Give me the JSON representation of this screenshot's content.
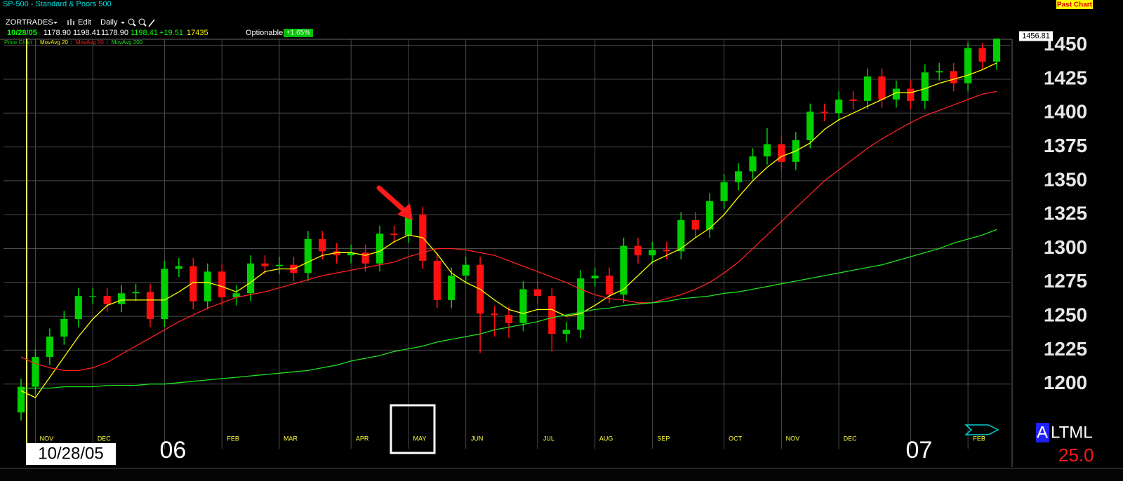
{
  "header": {
    "symbol_title": "SP-500 - Standard & Poors 500",
    "past_chart": "Past Chart",
    "account": "ZORTRADES",
    "edit": "Edit",
    "interval": "Daily",
    "quote": {
      "date": "10/28/05",
      "open": "1178.90",
      "high": "1198.41",
      "low": "1178.90",
      "close": "1198.41",
      "change": "+19.51",
      "volume": "17435"
    },
    "optionable": "Optionable",
    "pct_change": "+1.65%"
  },
  "chart_data": {
    "type": "candlestick",
    "categories": [
      null,
      "NOV",
      null,
      null,
      null,
      "DEC",
      null,
      null,
      null,
      null,
      "06",
      null,
      null,
      null,
      "FEB",
      null,
      null,
      null,
      "MAR",
      null,
      null,
      null,
      null,
      "APR",
      null,
      null,
      null,
      "MAY",
      null,
      null,
      null,
      "JUN",
      null,
      null,
      null,
      null,
      "JUL",
      null,
      null,
      null,
      "AUG",
      null,
      null,
      null,
      "SEP",
      null,
      null,
      null,
      null,
      "OCT",
      null,
      null,
      null,
      "NOV",
      null,
      null,
      null,
      "DEC",
      null,
      null,
      null,
      null,
      "07",
      null,
      null,
      null,
      "FEB",
      null,
      null
    ],
    "price": {
      "name": "Price Chart",
      "color": "#00d000",
      "down_color": "#ff1010",
      "open": [
        1179,
        1198,
        1220,
        1235,
        1248,
        1265,
        1265,
        1259,
        1267,
        1268,
        1248,
        1285,
        1287,
        1261,
        1283,
        1264,
        1267,
        1289,
        1287,
        1288,
        1282,
        1307,
        1298,
        1295,
        1297,
        1289,
        1311,
        1310,
        1325,
        1291,
        1262,
        1280,
        1288,
        1252,
        1251,
        1245,
        1270,
        1265,
        1237,
        1240,
        1278,
        1280,
        1266,
        1302,
        1295,
        1299,
        1298,
        1321,
        1314,
        1335,
        1349,
        1357,
        1368,
        1377,
        1364,
        1380,
        1401,
        1400,
        1410,
        1409,
        1427,
        1410,
        1418,
        1409,
        1430,
        1431,
        1422,
        1448,
        1438
      ],
      "high": [
        1204,
        1226,
        1241,
        1254,
        1271,
        1271,
        1271,
        1273,
        1274,
        1274,
        1291,
        1293,
        1293,
        1289,
        1289,
        1273,
        1295,
        1295,
        1294,
        1294,
        1313,
        1313,
        1304,
        1303,
        1303,
        1317,
        1317,
        1331,
        1331,
        1297,
        1286,
        1294,
        1294,
        1258,
        1257,
        1276,
        1276,
        1271,
        1246,
        1284,
        1286,
        1286,
        1308,
        1308,
        1305,
        1305,
        1327,
        1327,
        1341,
        1355,
        1363,
        1374,
        1389,
        1383,
        1386,
        1407,
        1407,
        1416,
        1416,
        1433,
        1433,
        1424,
        1424,
        1436,
        1437,
        1437,
        1452,
        1452,
        1454
      ],
      "low": [
        1173,
        1192,
        1214,
        1229,
        1242,
        1259,
        1253,
        1253,
        1261,
        1242,
        1242,
        1279,
        1255,
        1255,
        1258,
        1258,
        1261,
        1281,
        1281,
        1276,
        1276,
        1292,
        1289,
        1289,
        1283,
        1283,
        1304,
        1304,
        1285,
        1256,
        1256,
        1274,
        1223,
        1235,
        1234,
        1239,
        1259,
        1224,
        1231,
        1234,
        1272,
        1260,
        1260,
        1289,
        1289,
        1292,
        1292,
        1308,
        1308,
        1329,
        1343,
        1351,
        1362,
        1358,
        1358,
        1374,
        1394,
        1394,
        1403,
        1403,
        1404,
        1404,
        1403,
        1403,
        1424,
        1416,
        1416,
        1432,
        1432
      ],
      "close": [
        1198,
        1220,
        1235,
        1248,
        1265,
        1265,
        1259,
        1267,
        1268,
        1248,
        1285,
        1287,
        1261,
        1283,
        1264,
        1267,
        1289,
        1287,
        1288,
        1282,
        1307,
        1298,
        1295,
        1297,
        1289,
        1311,
        1310,
        1325,
        1291,
        1262,
        1280,
        1288,
        1252,
        1251,
        1245,
        1270,
        1265,
        1237,
        1240,
        1278,
        1280,
        1266,
        1302,
        1295,
        1299,
        1298,
        1321,
        1314,
        1335,
        1349,
        1357,
        1368,
        1377,
        1364,
        1380,
        1401,
        1400,
        1410,
        1409,
        1427,
        1410,
        1418,
        1409,
        1430,
        1431,
        1422,
        1448,
        1438,
        1455
      ]
    },
    "series": [
      {
        "name": "MovAvg 20",
        "color": "#ffff00",
        "values": [
          1195,
          1190,
          1205,
          1220,
          1235,
          1248,
          1258,
          1262,
          1262,
          1262,
          1262,
          1268,
          1275,
          1275,
          1272,
          1268,
          1275,
          1283,
          1285,
          1285,
          1290,
          1295,
          1297,
          1297,
          1295,
          1298,
          1305,
          1310,
          1308,
          1296,
          1282,
          1275,
          1270,
          1262,
          1255,
          1252,
          1255,
          1255,
          1250,
          1252,
          1258,
          1265,
          1270,
          1280,
          1290,
          1295,
          1300,
          1308,
          1315,
          1325,
          1338,
          1350,
          1360,
          1368,
          1372,
          1378,
          1388,
          1395,
          1400,
          1405,
          1410,
          1415,
          1415,
          1418,
          1422,
          1425,
          1428,
          1432,
          1437
        ]
      },
      {
        "name": "MovAvg 50",
        "color": "#ff2020",
        "values": [
          1220,
          1215,
          1212,
          1210,
          1210,
          1212,
          1216,
          1222,
          1228,
          1234,
          1240,
          1246,
          1251,
          1256,
          1260,
          1264,
          1266,
          1268,
          1271,
          1274,
          1277,
          1280,
          1282,
          1284,
          1286,
          1288,
          1290,
          1294,
          1297,
          1300,
          1300,
          1299,
          1297,
          1295,
          1291,
          1287,
          1283,
          1279,
          1275,
          1270,
          1266,
          1263,
          1262,
          1260,
          1260,
          1263,
          1266,
          1270,
          1275,
          1282,
          1290,
          1300,
          1310,
          1320,
          1330,
          1340,
          1350,
          1358,
          1366,
          1374,
          1381,
          1387,
          1393,
          1398,
          1402,
          1406,
          1410,
          1414,
          1416
        ]
      },
      {
        "name": "MovAvg 200",
        "color": "#20e020",
        "values": [
          1197,
          1197,
          1197,
          1198,
          1198,
          1198,
          1199,
          1199,
          1199,
          1200,
          1200,
          1201,
          1202,
          1203,
          1204,
          1205,
          1206,
          1207,
          1208,
          1209,
          1210,
          1212,
          1214,
          1217,
          1219,
          1221,
          1224,
          1226,
          1228,
          1231,
          1233,
          1235,
          1237,
          1240,
          1242,
          1244,
          1246,
          1249,
          1251,
          1253,
          1255,
          1256,
          1258,
          1259,
          1260,
          1261,
          1263,
          1264,
          1265,
          1267,
          1268,
          1270,
          1272,
          1274,
          1276,
          1278,
          1280,
          1282,
          1284,
          1286,
          1288,
          1291,
          1294,
          1297,
          1300,
          1304,
          1307,
          1310,
          1314
        ]
      }
    ],
    "ylim": [
      1160,
      1455
    ],
    "yticks": [
      1200,
      1225,
      1250,
      1275,
      1300,
      1325,
      1350,
      1375,
      1400,
      1425,
      1450
    ],
    "grid": true,
    "last_price": 1456.81,
    "cursor_date": "10/28/05"
  },
  "indicator": {
    "highlight": "A",
    "name": "LTML",
    "value": "25.0"
  }
}
